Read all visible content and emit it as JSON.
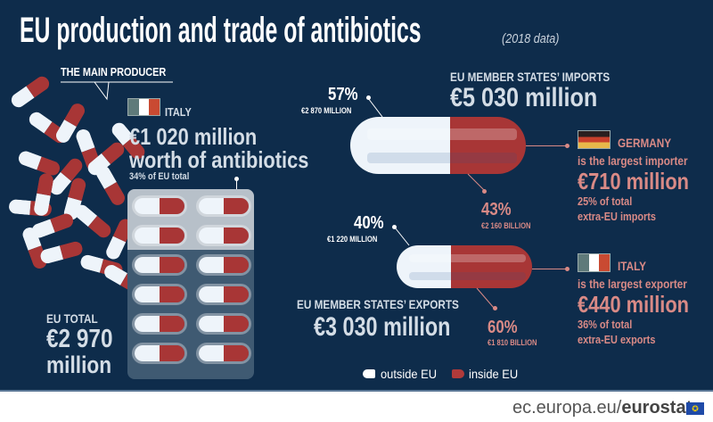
{
  "title": "EU production and trade of antibiotics",
  "subtitle": "(2018 data)",
  "producer": {
    "heading": "THE MAIN PRODUCER",
    "country": "ITALY",
    "value": "€1 020 million",
    "desc": "worth of antibiotics",
    "share": "34% of EU total"
  },
  "eu_total": {
    "label": "EU TOTAL",
    "value": "€2 970",
    "unit": "million"
  },
  "imports": {
    "label": "EU MEMBER STATES’ IMPORTS",
    "value": "€5 030 million",
    "outside": {
      "pct": "57%",
      "amount": "€2 870 MILLION",
      "share": 57
    },
    "inside": {
      "pct": "43%",
      "amount": "€2 160 BILLION",
      "share": 43
    },
    "top": {
      "country": "GERMANY",
      "line1": "is the largest importer",
      "value": "€710 million",
      "line2": "25% of total",
      "line3": "extra-EU imports"
    }
  },
  "exports": {
    "label": "EU MEMBER STATES’ EXPORTS",
    "value": "€3 030 million",
    "outside": {
      "pct": "40%",
      "amount": "€1 220 MILLION",
      "share": 40
    },
    "inside": {
      "pct": "60%",
      "amount": "€1 810 BILLION",
      "share": 60
    },
    "top": {
      "country": "ITALY",
      "line1": "is the largest exporter",
      "value": "€440 million",
      "line2": "36% of total",
      "line3": "extra-EU exports"
    }
  },
  "legend": {
    "outside": "outside EU",
    "inside": "inside EU"
  },
  "colors": {
    "background": "#0e2c4b",
    "inside_eu": "#a83636",
    "outside_eu": "#eef4fa",
    "accent_text": "#d98a86"
  },
  "footer": {
    "site": "ec.europa.eu/",
    "brand": "eurostat"
  }
}
